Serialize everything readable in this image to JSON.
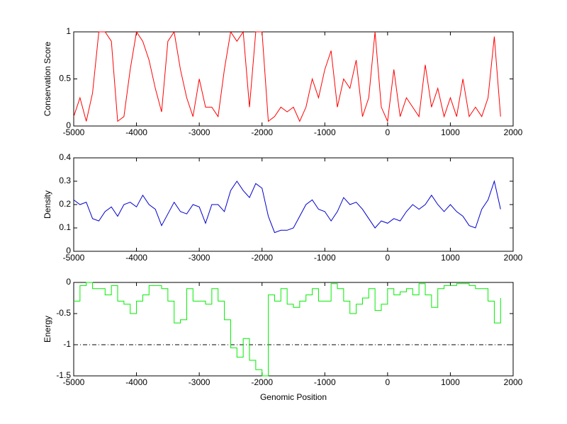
{
  "chart_data": [
    {
      "type": "line",
      "ylabel": "Conservation Score",
      "x": [
        -5000,
        -4900,
        -4800,
        -4700,
        -4600,
        -4500,
        -4400,
        -4300,
        -4200,
        -4100,
        -4000,
        -3900,
        -3800,
        -3700,
        -3600,
        -3500,
        -3400,
        -3300,
        -3200,
        -3100,
        -3000,
        -2900,
        -2800,
        -2700,
        -2600,
        -2500,
        -2400,
        -2300,
        -2200,
        -2100,
        -2000,
        -1900,
        -1800,
        -1700,
        -1600,
        -1500,
        -1400,
        -1300,
        -1200,
        -1100,
        -1000,
        -900,
        -800,
        -700,
        -600,
        -500,
        -400,
        -300,
        -200,
        -100,
        0,
        100,
        200,
        300,
        400,
        500,
        600,
        700,
        800,
        900,
        1000,
        1100,
        1200,
        1300,
        1400,
        1500,
        1600,
        1700,
        1800
      ],
      "series": [
        {
          "color": "#ff0000",
          "values": [
            0.1,
            0.3,
            0.05,
            0.35,
            1,
            1,
            0.9,
            0.05,
            0.1,
            0.6,
            1,
            0.9,
            0.7,
            0.4,
            0.15,
            0.9,
            1,
            0.6,
            0.3,
            0.1,
            0.5,
            0.2,
            0.2,
            0.1,
            0.6,
            1,
            0.9,
            1,
            0.2,
            1,
            1,
            0.05,
            0.1,
            0.2,
            0.15,
            0.2,
            0.05,
            0.2,
            0.5,
            0.3,
            0.6,
            0.8,
            0.2,
            0.5,
            0.4,
            0.7,
            0.1,
            0.3,
            1,
            0.2,
            0.05,
            0.6,
            0.1,
            0.3,
            0.2,
            0.1,
            0.65,
            0.2,
            0.4,
            0.1,
            0.3,
            0.1,
            0.5,
            0.1,
            0.2,
            0.1,
            0.3,
            0.95,
            0.1
          ]
        }
      ],
      "xlim": [
        -5000,
        2000
      ],
      "xticks": [
        -5000,
        -4000,
        -3000,
        -2000,
        -1000,
        0,
        1000,
        2000
      ],
      "ylim": [
        0,
        1
      ],
      "yticks": [
        0,
        0.5,
        1
      ]
    },
    {
      "type": "line",
      "ylabel": "Density",
      "x": [
        -5000,
        -4900,
        -4800,
        -4700,
        -4600,
        -4500,
        -4400,
        -4300,
        -4200,
        -4100,
        -4000,
        -3900,
        -3800,
        -3700,
        -3600,
        -3500,
        -3400,
        -3300,
        -3200,
        -3100,
        -3000,
        -2900,
        -2800,
        -2700,
        -2600,
        -2500,
        -2400,
        -2300,
        -2200,
        -2100,
        -2000,
        -1900,
        -1800,
        -1700,
        -1600,
        -1500,
        -1400,
        -1300,
        -1200,
        -1100,
        -1000,
        -900,
        -800,
        -700,
        -600,
        -500,
        -400,
        -300,
        -200,
        -100,
        0,
        100,
        200,
        300,
        400,
        500,
        600,
        700,
        800,
        900,
        1000,
        1100,
        1200,
        1300,
        1400,
        1500,
        1600,
        1700,
        1800
      ],
      "series": [
        {
          "color": "#0000cc",
          "values": [
            0.22,
            0.2,
            0.21,
            0.14,
            0.13,
            0.17,
            0.19,
            0.15,
            0.2,
            0.21,
            0.19,
            0.24,
            0.2,
            0.18,
            0.11,
            0.16,
            0.21,
            0.17,
            0.16,
            0.2,
            0.19,
            0.12,
            0.2,
            0.2,
            0.17,
            0.26,
            0.3,
            0.26,
            0.23,
            0.29,
            0.27,
            0.15,
            0.08,
            0.09,
            0.09,
            0.1,
            0.15,
            0.2,
            0.22,
            0.18,
            0.17,
            0.13,
            0.17,
            0.23,
            0.2,
            0.21,
            0.18,
            0.14,
            0.1,
            0.13,
            0.12,
            0.14,
            0.13,
            0.17,
            0.2,
            0.18,
            0.2,
            0.24,
            0.2,
            0.17,
            0.2,
            0.17,
            0.15,
            0.11,
            0.1,
            0.18,
            0.22,
            0.3,
            0.18
          ]
        }
      ],
      "xlim": [
        -5000,
        2000
      ],
      "xticks": [
        -5000,
        -4000,
        -3000,
        -2000,
        -1000,
        0,
        1000,
        2000
      ],
      "ylim": [
        0,
        0.4
      ],
      "yticks": [
        0,
        0.1,
        0.2,
        0.3,
        0.4
      ]
    },
    {
      "type": "step",
      "ylabel": "Energy",
      "xlabel": "Genomic Position",
      "x": [
        -5000,
        -4900,
        -4800,
        -4700,
        -4600,
        -4500,
        -4400,
        -4300,
        -4200,
        -4100,
        -4000,
        -3900,
        -3800,
        -3700,
        -3600,
        -3500,
        -3400,
        -3300,
        -3200,
        -3100,
        -3000,
        -2900,
        -2800,
        -2700,
        -2600,
        -2500,
        -2400,
        -2300,
        -2200,
        -2100,
        -2000,
        -1900,
        -1800,
        -1700,
        -1600,
        -1500,
        -1400,
        -1300,
        -1200,
        -1100,
        -1000,
        -900,
        -800,
        -700,
        -600,
        -500,
        -400,
        -300,
        -200,
        -100,
        0,
        100,
        200,
        300,
        400,
        500,
        600,
        700,
        800,
        900,
        1000,
        1100,
        1200,
        1300,
        1400,
        1500,
        1600,
        1700,
        1800
      ],
      "series": [
        {
          "color": "#00ee00",
          "values": [
            -0.3,
            -0.05,
            0,
            -0.1,
            -0.1,
            -0.2,
            -0.05,
            -0.3,
            -0.35,
            -0.5,
            -0.3,
            -0.2,
            -0.05,
            -0.05,
            -0.1,
            -0.3,
            -0.65,
            -0.6,
            -0.1,
            -0.3,
            -0.3,
            -0.35,
            -0.1,
            -0.3,
            -0.6,
            -1.05,
            -1.2,
            -0.9,
            -1.25,
            -1.4,
            -1.5,
            -0.2,
            -0.3,
            -0.1,
            -0.35,
            -0.4,
            -0.3,
            -0.2,
            -0.1,
            -0.3,
            -0.3,
            -0.02,
            -0.1,
            -0.3,
            -0.5,
            -0.35,
            -0.25,
            -0.1,
            -0.45,
            -0.35,
            -0.1,
            -0.2,
            -0.15,
            -0.1,
            -0.2,
            -0.02,
            -0.2,
            -0.4,
            -0.1,
            -0.05,
            -0.05,
            -0.02,
            -0.02,
            -0.05,
            -0.1,
            -0.1,
            -0.3,
            -0.65,
            -0.25
          ]
        }
      ],
      "reference_line": -1,
      "xlim": [
        -5000,
        2000
      ],
      "xticks": [
        -5000,
        -4000,
        -3000,
        -2000,
        -1000,
        0,
        1000,
        2000
      ],
      "ylim": [
        -1.5,
        0
      ],
      "yticks": [
        -1.5,
        -1,
        -0.5,
        0
      ]
    }
  ]
}
